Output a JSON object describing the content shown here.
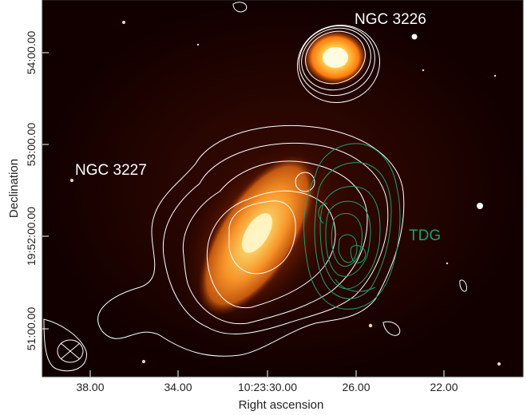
{
  "figure": {
    "xlabel": "Right ascension",
    "ylabel": "Declination",
    "x_ticks": [
      "38.00",
      "34.00",
      "10:23:30.00",
      "26.00",
      "22.00"
    ],
    "y_ticks": [
      "51:00.00",
      "19:52:00.00",
      "53:00.00",
      "54:00.00"
    ],
    "labels": {
      "ngc3226": "NGC 3226",
      "ngc3227": "NGC 3227",
      "tdg": "TDG"
    },
    "colors": {
      "background": "#120000",
      "white_contours": "#ffffff",
      "tdg_contours": "#1f9e6e",
      "tdg_label": "#1f9e6e",
      "galaxy_core": "#fff6c8",
      "galaxy_mid": "#ff9a2a",
      "galaxy_outer": "#a03a00"
    }
  }
}
